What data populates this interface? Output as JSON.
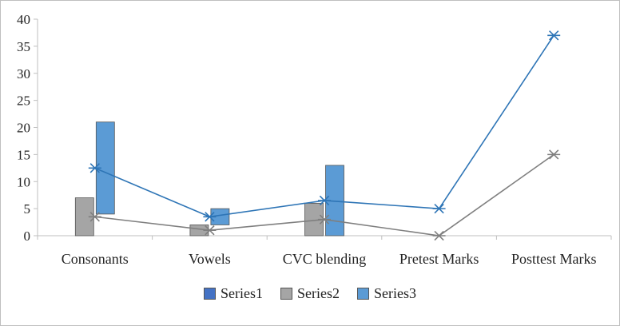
{
  "chart_data": {
    "type": "bar",
    "categories": [
      "Consonants",
      "Vowels",
      "CVC blending",
      "Pretest Marks",
      "Posttest Marks"
    ],
    "ylim": [
      0,
      40
    ],
    "yticks": [
      0,
      5,
      10,
      15,
      20,
      25,
      30,
      35,
      40
    ],
    "grid": false,
    "legend_position": "bottom",
    "series": [
      {
        "name": "Series1",
        "color": "#4472c4",
        "bars": [
          null,
          null,
          null,
          null,
          null
        ]
      },
      {
        "name": "Series2",
        "color": "#a5a5a5",
        "bars": [
          [
            0,
            7
          ],
          [
            0,
            2
          ],
          [
            0,
            6
          ],
          null,
          null
        ],
        "line": [
          3.5,
          1,
          3,
          0,
          15
        ]
      },
      {
        "name": "Series3",
        "color": "#5b9bd5",
        "bars": [
          [
            4,
            21
          ],
          [
            2,
            5
          ],
          [
            0,
            13
          ],
          null,
          null
        ],
        "line": [
          12.5,
          3.5,
          6.5,
          5,
          37
        ]
      }
    ],
    "line_colors": {
      "Series2": "#7f7f7f",
      "Series3": "#2e75b6"
    }
  }
}
